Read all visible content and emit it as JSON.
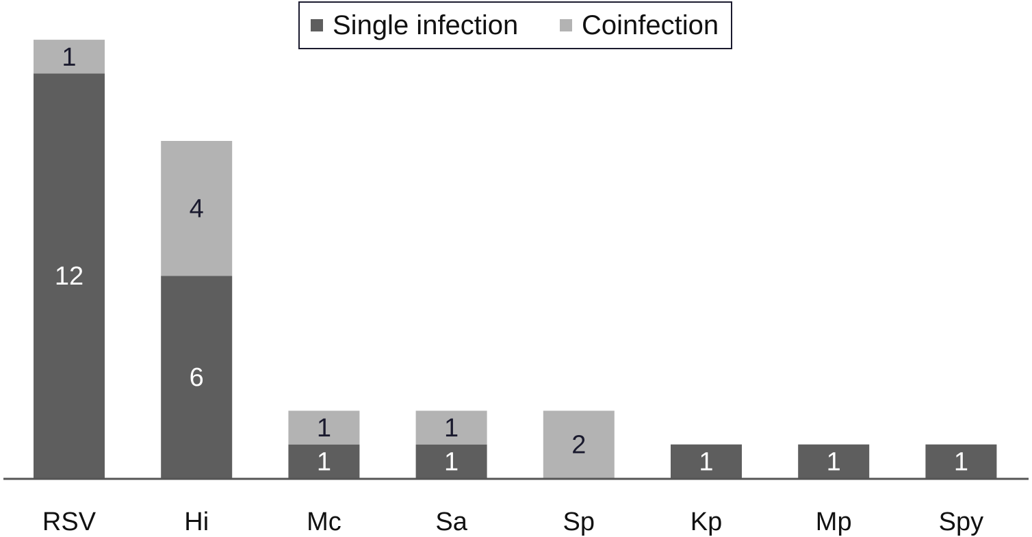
{
  "chart_data": {
    "type": "bar",
    "stacked": true,
    "categories": [
      "RSV",
      "Hi",
      "Mc",
      "Sa",
      "Sp",
      "Kp",
      "Mp",
      "Spy"
    ],
    "series": [
      {
        "name": "Single infection",
        "color": "#5e5e5e",
        "label_color": "#ffffff",
        "values": [
          12,
          6,
          1,
          1,
          0,
          1,
          1,
          1
        ]
      },
      {
        "name": "Coinfection",
        "color": "#b3b3b3",
        "label_color": "#1a1a2e",
        "values": [
          1,
          4,
          1,
          1,
          2,
          0,
          0,
          0
        ]
      }
    ],
    "ylim": [
      0,
      13
    ],
    "grid": false,
    "legend_position": "top-center",
    "data_labels": true
  }
}
